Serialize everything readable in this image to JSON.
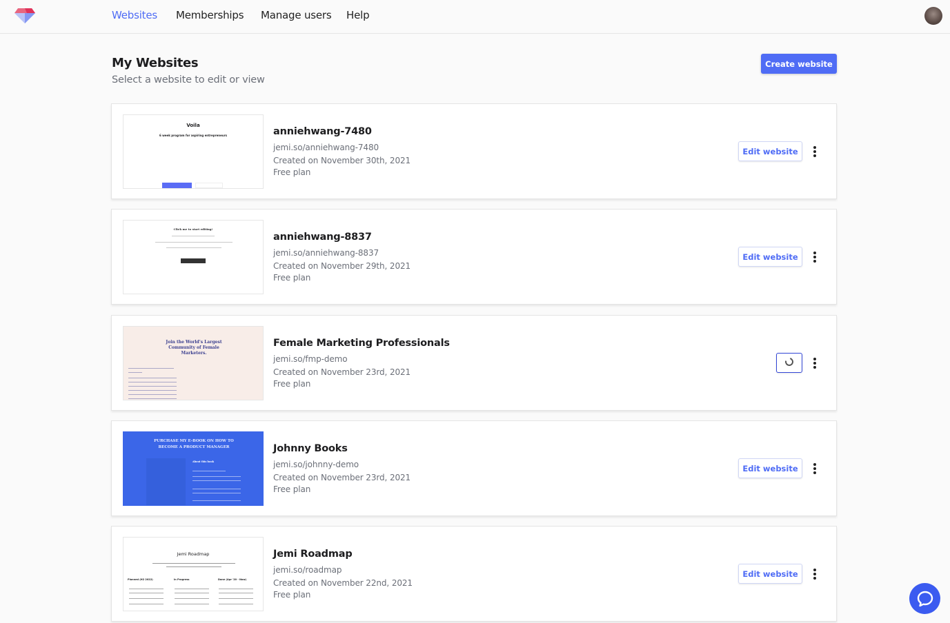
{
  "header": {
    "nav": [
      "Websites",
      "Memberships",
      "Manage users",
      "Help"
    ],
    "active": "Websites",
    "accent": "#4f6cf5"
  },
  "page": {
    "title": "My Websites",
    "subtitle": "Select a website to edit or view",
    "create_label": "Create website"
  },
  "websites": [
    {
      "name": "anniehwang-7480",
      "url": "jemi.so/anniehwang-7480",
      "created": "Created on November 30th, 2021",
      "plan": "Free plan",
      "action": "Edit website",
      "loading": false,
      "thumb": {
        "title": "Voila",
        "subtitle": "6 week program for aspiring entrepreneurs"
      }
    },
    {
      "name": "anniehwang-8837",
      "url": "jemi.so/anniehwang-8837",
      "created": "Created on November 29th, 2021",
      "plan": "Free plan",
      "action": "Edit website",
      "loading": false,
      "thumb": {
        "title": "Click me to start editing!"
      }
    },
    {
      "name": "Female Marketing Professionals",
      "url": "jemi.so/fmp-demo",
      "created": "Created on November 23rd, 2021",
      "plan": "Free plan",
      "action": "",
      "loading": true,
      "thumb": {
        "title": "Join the World's Largest Community of Female Marketers."
      }
    },
    {
      "name": "Johnny Books",
      "url": "jemi.so/johnny-demo",
      "created": "Created on November 23rd, 2021",
      "plan": "Free plan",
      "action": "Edit website",
      "loading": false,
      "thumb": {
        "title": "PURCHASE MY E-BOOK ON HOW TO BECOME A PRODUCT MANAGER",
        "subtitle": "About this book"
      }
    },
    {
      "name": "Jemi Roadmap",
      "url": "jemi.so/roadmap",
      "created": "Created on November 22nd, 2021",
      "plan": "Free plan",
      "action": "Edit website",
      "loading": false,
      "thumb": {
        "title": "Jemi Roadmap",
        "columns": [
          "Planned (H2 2022)",
          "In Progress",
          "Done (Apr '20 - Now)"
        ]
      }
    }
  ]
}
